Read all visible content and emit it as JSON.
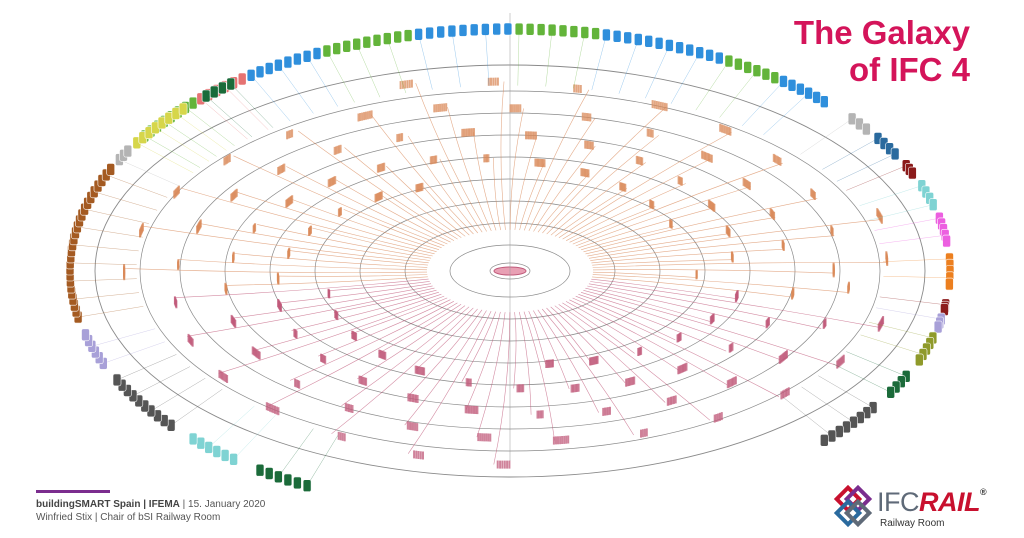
{
  "title": {
    "line1": "The Galaxy",
    "line2": "of IFC 4"
  },
  "footer": {
    "line1_bold": "buildingSMART Spain | IFEMA",
    "line1_rest": " | 15. January 2020",
    "line2": "Winfried Stix | Chair of bSI Railway Room"
  },
  "logo": {
    "ifc": "IFC",
    "rail": "RAIL",
    "registered": "®",
    "subtitle": "Railway Room"
  },
  "colors": {
    "title": "#d4145a",
    "accent_line": "#7b2d8e",
    "rings": "#8a8a8a",
    "upper_branches": "#d9895a",
    "lower_branches": "#c05a7a",
    "outer_groups": [
      "#2f8fdc",
      "#63b43a",
      "#e57373",
      "#1b6b3a",
      "#d6d64a",
      "#a45a21",
      "#b4b4b4",
      "#a8a0d8",
      "#7fd3d3",
      "#ec5fe0",
      "#ec7f1f",
      "#8b1a1a",
      "#8f9a2a",
      "#2a6a9e",
      "#555555"
    ]
  }
}
